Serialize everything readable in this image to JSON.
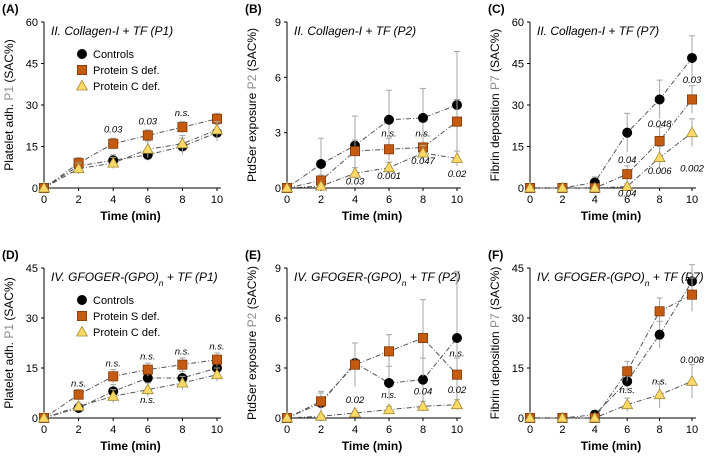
{
  "legend_labels": [
    "Controls",
    "Protein S def.",
    "Protein C def."
  ],
  "colors": {
    "controls": "#000000",
    "protein_s": "#c55a11",
    "protein_c": "#ffd966",
    "line": "#555555",
    "error": "#a6a6a6"
  },
  "chart_data": [
    {
      "type": "line",
      "panel": "(A)",
      "title_main": "II. Collagen-I + TF (P1)",
      "ylabel_pre": "Platelet adh. ",
      "ylabel_p": "P1",
      "ylabel_post": " (SAC%)",
      "xlabel": "Time (min)",
      "x": [
        0,
        2,
        4,
        6,
        8,
        10
      ],
      "xticks": [
        "0",
        "2",
        "4",
        "6",
        "8",
        "10"
      ],
      "ylim": [
        0,
        60
      ],
      "yticks": [
        "0",
        "15",
        "30",
        "45",
        "60"
      ],
      "legend": true,
      "series": [
        {
          "name": "Controls",
          "values": [
            0,
            8,
            10,
            12,
            15,
            20
          ],
          "err": [
            0,
            1.5,
            2,
            2,
            3,
            3
          ]
        },
        {
          "name": "Protein S def.",
          "values": [
            0,
            9,
            16,
            19,
            22,
            25
          ],
          "err": [
            0,
            2,
            2,
            2,
            2,
            2
          ]
        },
        {
          "name": "Protein C def.",
          "values": [
            0,
            7,
            9,
            14,
            16,
            21
          ],
          "err": [
            0,
            2,
            2,
            3,
            3,
            3
          ]
        }
      ],
      "annotations": [
        {
          "x": 4,
          "y": 20,
          "text": "0.03"
        },
        {
          "x": 6,
          "y": 23,
          "text": "0.03"
        },
        {
          "x": 8,
          "y": 26,
          "text": "n.s."
        }
      ]
    },
    {
      "type": "line",
      "panel": "(B)",
      "title_main": "II. Collagen-I + TF (P2)",
      "ylabel_pre": "PtdSer exposure ",
      "ylabel_p": "P2",
      "ylabel_post": " (SAC%)",
      "xlabel": "Time (min)",
      "x": [
        0,
        2,
        4,
        6,
        8,
        10
      ],
      "xticks": [
        "0",
        "2",
        "4",
        "6",
        "8",
        "10"
      ],
      "ylim": [
        0,
        9
      ],
      "yticks": [
        "0",
        "3",
        "6",
        "9"
      ],
      "legend": false,
      "series": [
        {
          "name": "Controls",
          "values": [
            0,
            1.3,
            2.3,
            3.7,
            3.8,
            4.5
          ],
          "err": [
            0,
            1.4,
            1.6,
            1.6,
            1.6,
            2.9
          ]
        },
        {
          "name": "Protein S def.",
          "values": [
            0,
            0.4,
            2.0,
            2.1,
            2.2,
            3.6
          ],
          "err": [
            0,
            0.3,
            0.6,
            0.6,
            0.7,
            1.2
          ]
        },
        {
          "name": "Protein C def.",
          "values": [
            0,
            0.1,
            0.8,
            1.1,
            1.9,
            1.6
          ],
          "err": [
            0,
            0.1,
            0.3,
            0.3,
            0.4,
            0.4
          ]
        }
      ],
      "annotations": [
        {
          "x": 6,
          "y": 2.8,
          "text": "n.s."
        },
        {
          "x": 8,
          "y": 2.8,
          "text": "n.s."
        },
        {
          "x": 4,
          "y": 0.2,
          "text": "0.03"
        },
        {
          "x": 6,
          "y": 0.5,
          "text": "0.001"
        },
        {
          "x": 8,
          "y": 1.3,
          "text": "0.047"
        },
        {
          "x": 10,
          "y": 0.6,
          "text": "0.02"
        }
      ]
    },
    {
      "type": "line",
      "panel": "(C)",
      "title_main": "II. Collagen-I + TF (P7)",
      "ylabel_pre": "Fibrin deposition ",
      "ylabel_p": "P7",
      "ylabel_post": " (SAC%)",
      "xlabel": "Time (min)",
      "x": [
        0,
        2,
        4,
        6,
        8,
        10
      ],
      "xticks": [
        "0",
        "2",
        "4",
        "6",
        "8",
        "10"
      ],
      "ylim": [
        0,
        60
      ],
      "yticks": [
        "0",
        "15",
        "30",
        "45",
        "60"
      ],
      "legend": false,
      "series": [
        {
          "name": "Controls",
          "values": [
            0,
            0,
            2,
            20,
            32,
            47
          ],
          "err": [
            0,
            0,
            2,
            7,
            7,
            8
          ]
        },
        {
          "name": "Protein S def.",
          "values": [
            0,
            0,
            0,
            5,
            17,
            32
          ],
          "err": [
            0,
            0,
            0,
            3,
            5,
            5
          ]
        },
        {
          "name": "Protein C def.",
          "values": [
            0,
            0,
            0,
            0.5,
            11,
            20
          ],
          "err": [
            0,
            0,
            0,
            1,
            4,
            5
          ]
        }
      ],
      "annotations": [
        {
          "x": 10,
          "y": 38,
          "text": "0.03"
        },
        {
          "x": 8,
          "y": 22,
          "text": "0.048"
        },
        {
          "x": 6,
          "y": 9,
          "text": "0.04"
        },
        {
          "x": 8,
          "y": 5,
          "text": "0.006"
        },
        {
          "x": 6,
          "y": -3,
          "text": "0.04"
        },
        {
          "x": 10,
          "y": 6,
          "text": "0.002"
        }
      ]
    },
    {
      "type": "line",
      "panel": "(D)",
      "title_main": "IV. GFOGER-(GPO)",
      "title_sub": "n",
      "title_rest": " + TF (P1)",
      "ylabel_pre": "Platelet adh. ",
      "ylabel_p": "P1",
      "ylabel_post": " (SAC%)",
      "xlabel": "Time (min)",
      "x": [
        0,
        2,
        4,
        6,
        8,
        10
      ],
      "xticks": [
        "0",
        "2",
        "4",
        "6",
        "8",
        "10"
      ],
      "ylim": [
        0,
        45
      ],
      "yticks": [
        "0",
        "15",
        "30",
        "45"
      ],
      "legend": true,
      "series": [
        {
          "name": "Controls",
          "values": [
            0,
            3,
            8,
            12,
            12,
            15
          ],
          "err": [
            0,
            1,
            2,
            2,
            2,
            3
          ]
        },
        {
          "name": "Protein S def.",
          "values": [
            0,
            7,
            12.5,
            14.5,
            16,
            17.5
          ],
          "err": [
            0,
            1.5,
            2,
            2,
            2,
            2
          ]
        },
        {
          "name": "Protein C def.",
          "values": [
            0,
            3.5,
            6.5,
            8.5,
            10.5,
            13
          ],
          "err": [
            0,
            1,
            2,
            2,
            2,
            2
          ]
        }
      ],
      "annotations": [
        {
          "x": 2,
          "y": 9.5,
          "text": "n.s."
        },
        {
          "x": 4,
          "y": 15.5,
          "text": "n.s."
        },
        {
          "x": 6,
          "y": 17.5,
          "text": "n.s."
        },
        {
          "x": 8,
          "y": 19,
          "text": "n.s."
        },
        {
          "x": 10,
          "y": 20.5,
          "text": "n.s."
        },
        {
          "x": 6,
          "y": 4.5,
          "text": "n.s."
        }
      ]
    },
    {
      "type": "line",
      "panel": "(E)",
      "title_main": "IV. GFOGER-(GPO)",
      "title_sub": "n",
      "title_rest": " + TF (P2)",
      "ylabel_pre": "PtdSer exposure ",
      "ylabel_p": "P2",
      "ylabel_post": " (SAC%)",
      "xlabel": "Time (min)",
      "x": [
        0,
        2,
        4,
        6,
        8,
        10
      ],
      "xticks": [
        "0",
        "2",
        "4",
        "6",
        "8",
        "10"
      ],
      "ylim": [
        0,
        9
      ],
      "yticks": [
        "0",
        "3",
        "6",
        "9"
      ],
      "legend": false,
      "series": [
        {
          "name": "Controls",
          "values": [
            0,
            0.9,
            3.3,
            2.1,
            2.3,
            4.8
          ],
          "err": [
            0,
            0.6,
            1.2,
            1.0,
            1.3,
            4.0
          ]
        },
        {
          "name": "Protein S def.",
          "values": [
            0,
            1.0,
            3.2,
            4.0,
            4.8,
            2.6
          ],
          "err": [
            0,
            0.6,
            1.3,
            1.0,
            2.3,
            1.0
          ]
        },
        {
          "name": "Protein C def.",
          "values": [
            0,
            0.1,
            0.3,
            0.5,
            0.7,
            0.8
          ],
          "err": [
            0,
            0.1,
            0.1,
            0.2,
            0.3,
            0.3
          ]
        }
      ],
      "annotations": [
        {
          "x": 10,
          "y": 3.7,
          "text": "n.s."
        },
        {
          "x": 4,
          "y": 0.9,
          "text": "0.02"
        },
        {
          "x": 6,
          "y": 1.2,
          "text": "n.s."
        },
        {
          "x": 8,
          "y": 1.4,
          "text": "0.04"
        },
        {
          "x": 10,
          "y": 1.5,
          "text": "0.02"
        }
      ]
    },
    {
      "type": "line",
      "panel": "(F)",
      "title_main": "IV. GFOGER-(GPO)",
      "title_sub": "n",
      "title_rest": " + TF (P7)",
      "ylabel_pre": "Fibrin deposition ",
      "ylabel_p": "P7",
      "ylabel_post": " (SAC%)",
      "xlabel": "Time (min)",
      "x": [
        0,
        2,
        4,
        6,
        8,
        10
      ],
      "xticks": [
        "0",
        "2",
        "4",
        "6",
        "8",
        "10"
      ],
      "ylim": [
        0,
        45
      ],
      "yticks": [
        "0",
        "15",
        "30",
        "45"
      ],
      "legend": false,
      "series": [
        {
          "name": "Controls",
          "values": [
            0,
            0,
            1,
            11,
            25,
            41
          ],
          "err": [
            0,
            0,
            1,
            3,
            4,
            5
          ]
        },
        {
          "name": "Protein S def.",
          "values": [
            0,
            0,
            0,
            14,
            32,
            37
          ],
          "err": [
            0,
            0,
            0,
            3,
            4,
            5
          ]
        },
        {
          "name": "Protein C def.",
          "values": [
            0,
            0,
            0,
            4,
            7,
            11
          ],
          "err": [
            0,
            0,
            0,
            2,
            4,
            5
          ]
        }
      ],
      "annotations": [
        {
          "x": 6,
          "y": 7.5,
          "text": "n.s."
        },
        {
          "x": 8,
          "y": 10,
          "text": "n.s."
        },
        {
          "x": 10,
          "y": 16.5,
          "text": "0.008"
        }
      ]
    }
  ]
}
